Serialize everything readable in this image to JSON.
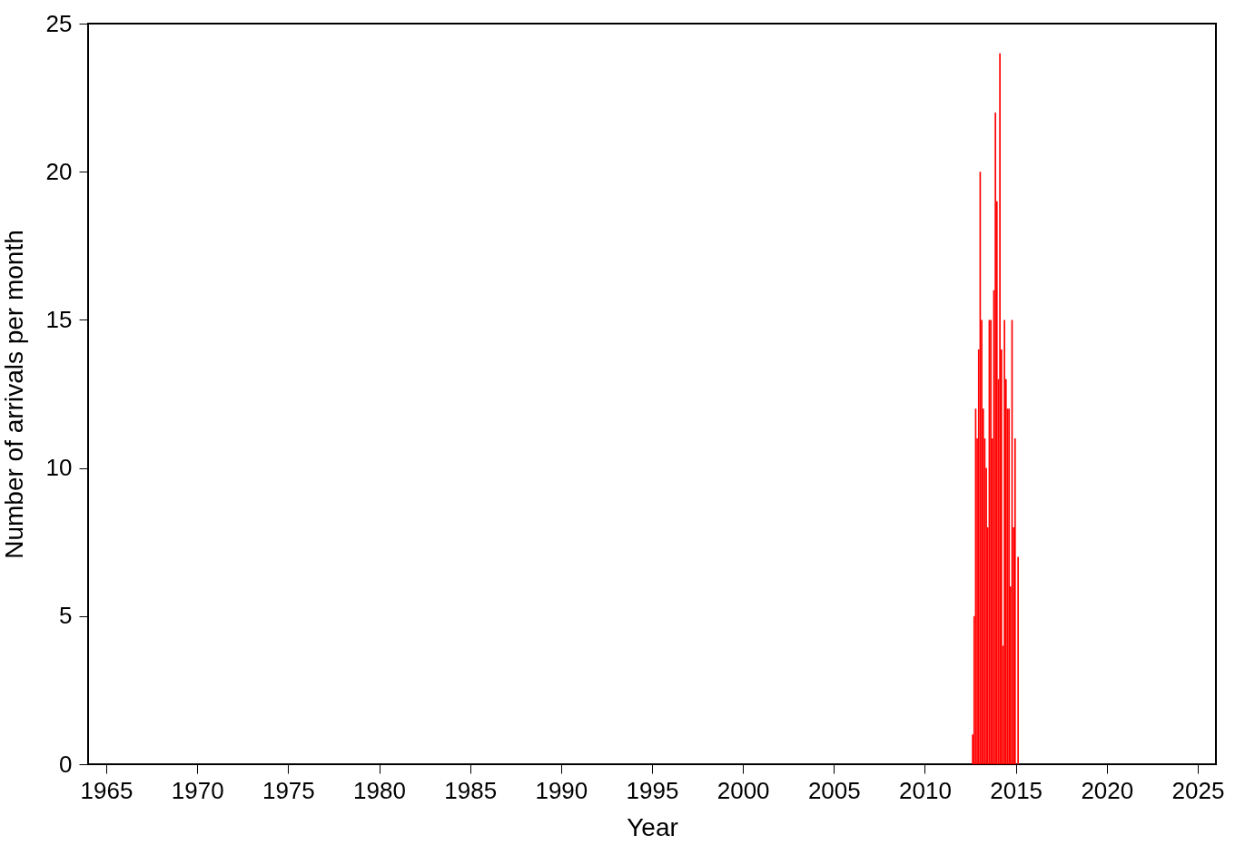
{
  "chart_data": {
    "type": "histogram",
    "xlabel": "Year",
    "ylabel": "Number of arrivals per month",
    "color": "#ff0000",
    "bins": [
      2012.583,
      2012.667,
      2012.75,
      2012.833,
      2012.917,
      2013.0,
      2013.083,
      2013.167,
      2013.25,
      2013.333,
      2013.417,
      2013.5,
      2013.583,
      2013.667,
      2013.75,
      2013.833,
      2013.917,
      2014.0,
      2014.083,
      2014.167,
      2014.25,
      2014.333,
      2014.417,
      2014.5,
      2014.583,
      2014.667,
      2014.75,
      2014.833,
      2014.917,
      2015.0,
      2015.083,
      2015.167
    ],
    "values": [
      1,
      5,
      12,
      11,
      14,
      20,
      15,
      12,
      11,
      10,
      8,
      15,
      15,
      11,
      16,
      22,
      19,
      13,
      24,
      14,
      4,
      15,
      13,
      12,
      12,
      6,
      15,
      8,
      11,
      0,
      7
    ],
    "xlim": [
      1964,
      2026
    ],
    "xticks": [
      1965,
      1970,
      1975,
      1980,
      1985,
      1990,
      1995,
      2000,
      2005,
      2010,
      2015,
      2020,
      2025
    ],
    "ylim": [
      0,
      25
    ],
    "yticks": [
      0,
      5,
      10,
      15,
      20,
      25
    ],
    "grid": false
  }
}
